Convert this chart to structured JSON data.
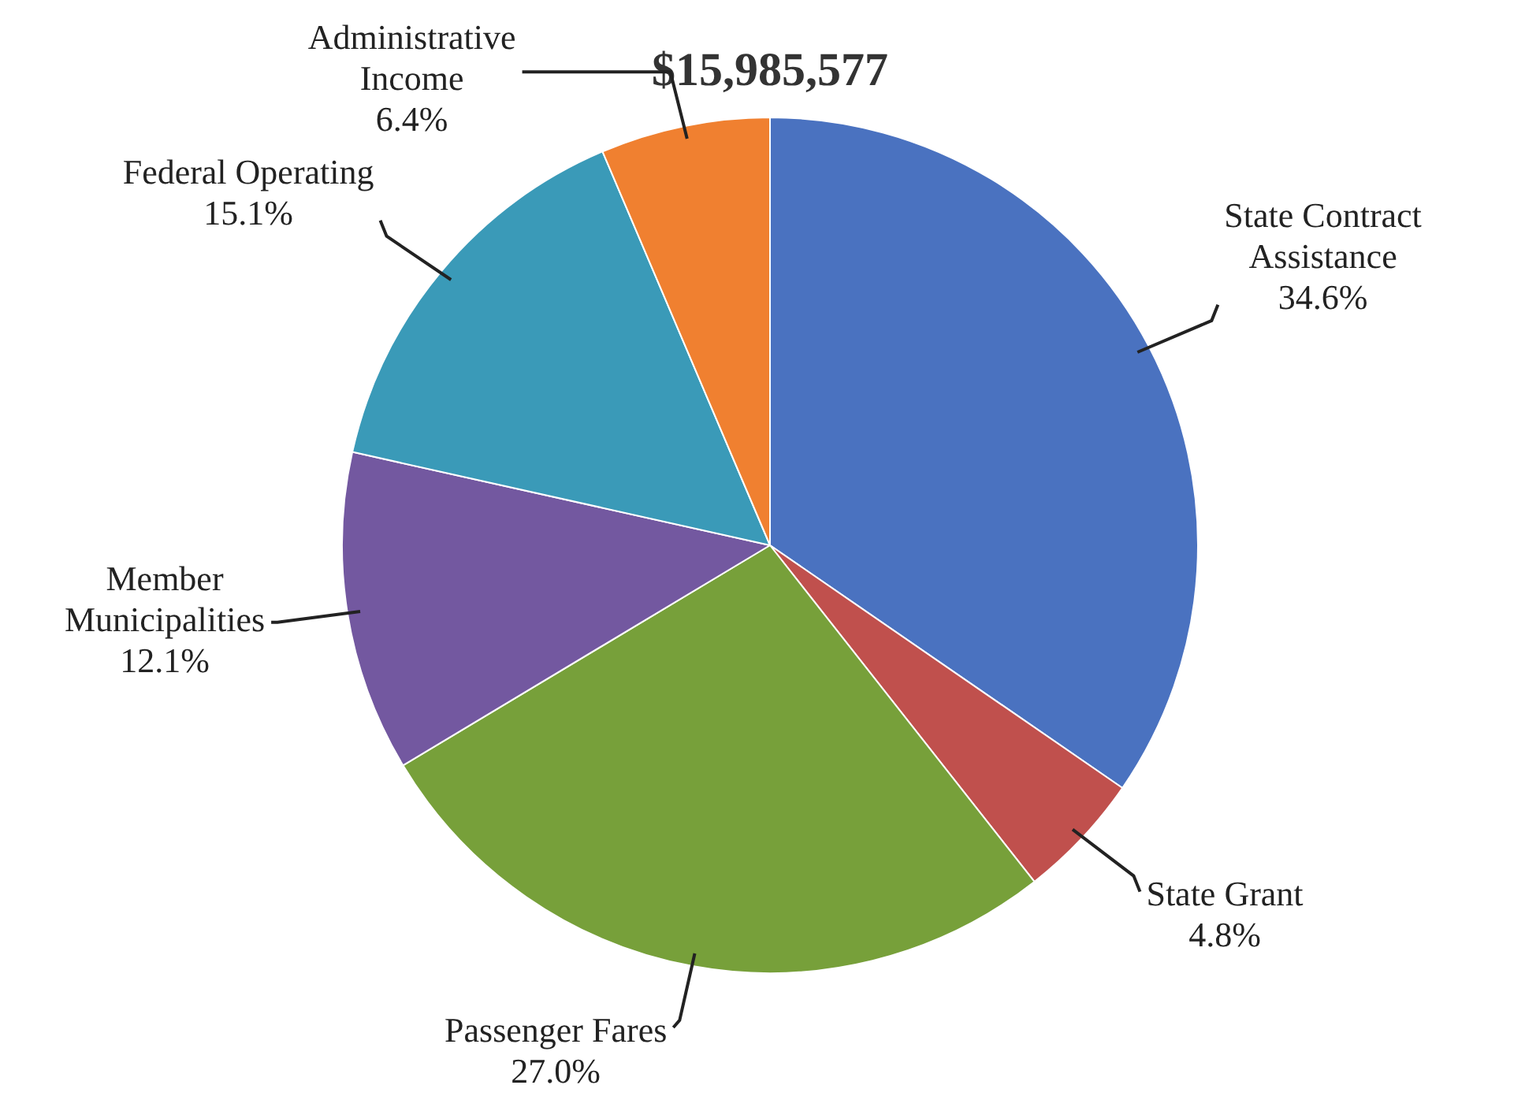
{
  "chart_data": {
    "type": "pie",
    "title": "$15,985,577",
    "categories": [
      "State Contract Assistance",
      "State Grant",
      "Passenger Fares",
      "Member Municipalities",
      "Federal Operating",
      "Administrative Income"
    ],
    "values": [
      34.6,
      4.8,
      27.0,
      12.1,
      15.1,
      6.4
    ],
    "value_labels": [
      "34.6%",
      "4.8%",
      "27.0%",
      "12.1%",
      "15.1%",
      "6.4%"
    ],
    "colors": [
      "#4a72c0",
      "#c0504d",
      "#77a03a",
      "#7358a0",
      "#3a9ab8",
      "#f08030"
    ],
    "legend": false
  }
}
